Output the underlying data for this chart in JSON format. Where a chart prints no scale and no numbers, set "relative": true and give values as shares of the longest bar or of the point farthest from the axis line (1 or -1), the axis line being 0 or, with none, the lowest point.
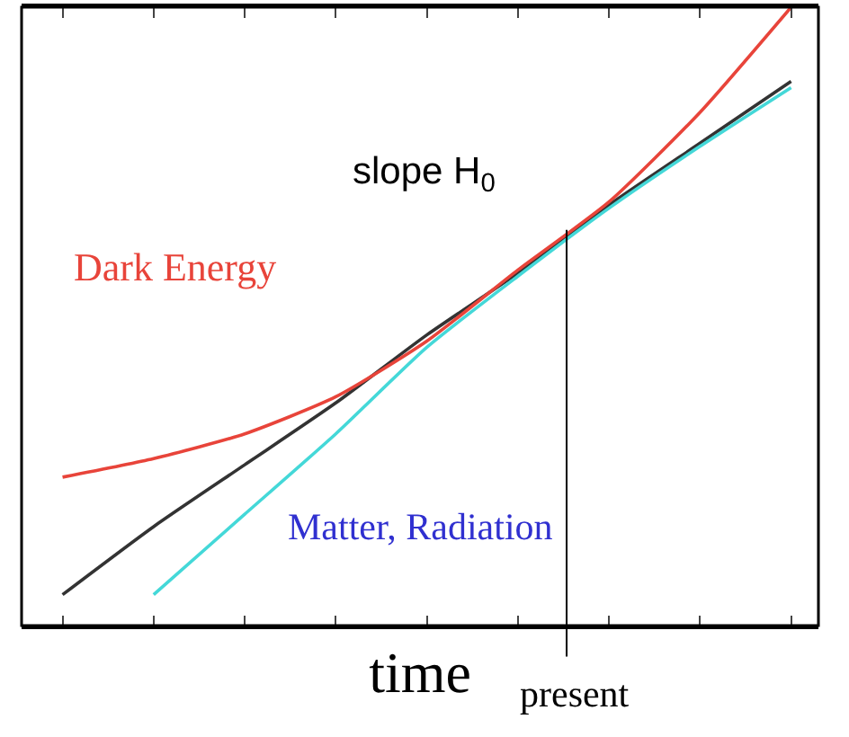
{
  "chart_data": {
    "type": "line",
    "relative": true,
    "xlabel": "time",
    "categories": [
      null,
      null,
      null,
      null,
      null,
      null,
      null,
      null,
      null
    ],
    "series": [
      {
        "color": "#333333",
        "values": [
          0.05,
          0.16,
          0.26,
          0.36,
          0.47,
          0.57,
          0.68,
          0.78,
          0.88
        ]
      },
      {
        "name": "Dark Energy",
        "color": "#e8443a",
        "values": [
          0.24,
          0.27,
          0.31,
          0.37,
          0.46,
          0.575,
          0.685,
          0.83,
          1
        ]
      },
      {
        "color": "#44d8d8",
        "values": [
          null,
          0.05,
          0.18,
          0.31,
          0.45,
          0.565,
          0.675,
          0.775,
          0.87
        ]
      }
    ],
    "annotations": [
      "slope H$_{0}$",
      "Matter, Radiation",
      "present"
    ],
    "legend": false,
    "tick_labels": false,
    "marker": "none",
    "line_style": "solid"
  }
}
